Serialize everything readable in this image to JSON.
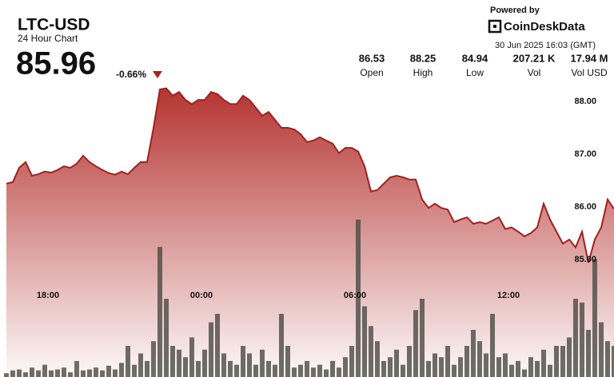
{
  "header": {
    "symbol": "LTC-USD",
    "subtitle": "24 Hour Chart",
    "price": "85.96",
    "change": "-0.66%"
  },
  "stats": [
    {
      "value": "86.53",
      "label": "Open"
    },
    {
      "value": "88.25",
      "label": "High"
    },
    {
      "value": "84.94",
      "label": "Low"
    },
    {
      "value": "207.21 K",
      "label": "Vol"
    },
    {
      "value": "17.94 M",
      "label": "Vol USD"
    }
  ],
  "branding": {
    "powered_by": "Powered by",
    "name": "CoinDeskData",
    "timestamp": "30 Jun 2025 16:03 (GMT)"
  },
  "chart_data": {
    "type": "area",
    "series": [
      {
        "color": "#a61e1e",
        "values": [
          86.44,
          86.47,
          86.74,
          86.85,
          86.59,
          86.62,
          86.67,
          86.65,
          86.7,
          86.77,
          86.74,
          86.82,
          86.97,
          86.85,
          86.77,
          86.7,
          86.64,
          86.61,
          86.67,
          86.62,
          86.74,
          86.85,
          86.85,
          87.5,
          88.23,
          88.25,
          88.11,
          88.18,
          88.03,
          87.95,
          88.03,
          88.03,
          88.18,
          88.14,
          88.03,
          87.95,
          87.95,
          88.11,
          88.03,
          87.88,
          87.73,
          87.8,
          87.65,
          87.5,
          87.5,
          87.47,
          87.38,
          87.23,
          87.26,
          87.32,
          87.26,
          87.2,
          87.02,
          87.12,
          87.12,
          87.05,
          86.77,
          86.29,
          86.32,
          86.44,
          86.56,
          86.59,
          86.56,
          86.52,
          86.52,
          86.14,
          85.98,
          86.06,
          85.98,
          85.95,
          85.71,
          85.76,
          85.8,
          85.68,
          85.71,
          85.68,
          85.74,
          85.8,
          85.58,
          85.61,
          85.53,
          85.44,
          85.5,
          85.61,
          86.06,
          85.76,
          85.53,
          85.3,
          85.38,
          85.23,
          85.53,
          84.94,
          85.38,
          85.61,
          86.14,
          85.96
        ]
      },
      {
        "color": "#4a4a44",
        "axis": "y2",
        "values": [
          0.4,
          0.7,
          0.8,
          0.5,
          1.0,
          0.7,
          1.3,
          0.7,
          0.8,
          1.0,
          0.5,
          1.7,
          0.7,
          0.8,
          1.0,
          0.7,
          1.2,
          0.8,
          1.5,
          3.3,
          1.3,
          2.5,
          1.7,
          3.8,
          13.8,
          8.3,
          3.3,
          2.9,
          2.1,
          4.2,
          1.7,
          2.9,
          5.8,
          6.7,
          2.5,
          1.7,
          1.3,
          3.3,
          2.5,
          1.3,
          2.9,
          1.7,
          1.3,
          6.7,
          3.3,
          1.0,
          1.3,
          1.7,
          1.0,
          1.3,
          0.8,
          1.7,
          1.0,
          2.1,
          3.3,
          16.7,
          7.5,
          5.4,
          3.8,
          1.7,
          2.1,
          2.9,
          1.3,
          3.3,
          7.1,
          8.3,
          1.7,
          2.5,
          2.1,
          3.3,
          1.3,
          2.1,
          3.3,
          5.0,
          3.8,
          2.5,
          6.7,
          2.1,
          2.5,
          1.3,
          1.7,
          0.8,
          2.1,
          1.7,
          2.9,
          1.3,
          3.3,
          3.3,
          4.2,
          8.3,
          7.9,
          5.0,
          12.5,
          5.8,
          3.8,
          3.3
        ]
      }
    ],
    "xlim": [
      0,
      95
    ],
    "xticks": [
      {
        "value": 6.5,
        "label": "18:00"
      },
      {
        "value": 30.5,
        "label": "00:00"
      },
      {
        "value": 54.5,
        "label": "06:00"
      },
      {
        "value": 78.5,
        "label": "12:00"
      }
    ],
    "ylim": [
      82.77,
      88.41
    ],
    "yticks": [
      {
        "value": 85,
        "label": "85.00"
      },
      {
        "value": 86,
        "label": "86.00"
      },
      {
        "value": 87,
        "label": "87.00"
      },
      {
        "value": 88,
        "label": "88.00"
      }
    ],
    "y2lim": [
      0,
      40
    ],
    "grid": false
  }
}
